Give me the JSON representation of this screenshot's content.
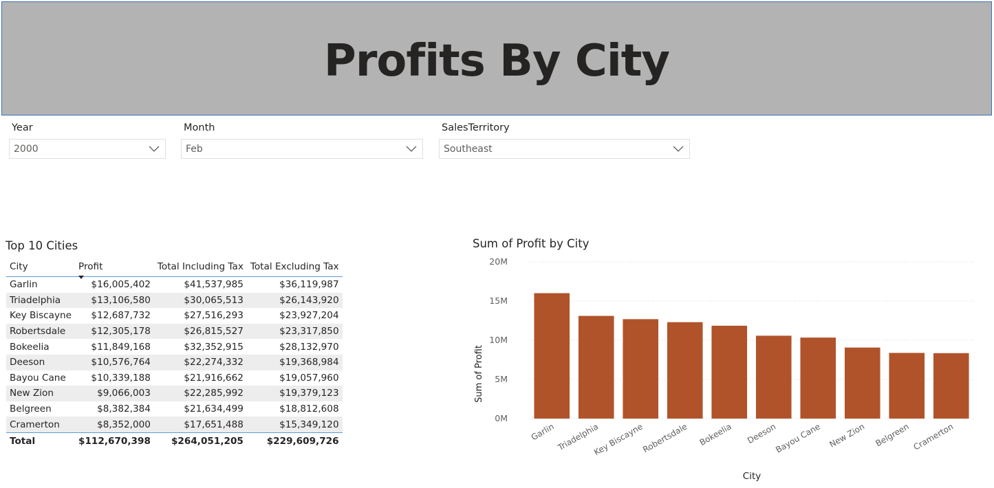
{
  "header": {
    "title": "Profits By City"
  },
  "slicers": {
    "year": {
      "label": "Year",
      "value": "2000"
    },
    "month": {
      "label": "Month",
      "value": "Feb"
    },
    "territory": {
      "label": "SalesTerritory",
      "value": "Southeast"
    }
  },
  "table": {
    "title": "Top 10 Cities",
    "columns": [
      "City",
      "Profit",
      "Total Including Tax",
      "Total Excluding Tax"
    ],
    "rows": [
      [
        "Garlin",
        "$16,005,402",
        "$41,537,985",
        "$36,119,987"
      ],
      [
        "Triadelphia",
        "$13,106,580",
        "$30,065,513",
        "$26,143,920"
      ],
      [
        "Key Biscayne",
        "$12,687,732",
        "$27,516,293",
        "$23,927,204"
      ],
      [
        "Robertsdale",
        "$12,305,178",
        "$26,815,527",
        "$23,317,850"
      ],
      [
        "Bokeelia",
        "$11,849,168",
        "$32,352,915",
        "$28,132,970"
      ],
      [
        "Deeson",
        "$10,576,764",
        "$22,274,332",
        "$19,368,984"
      ],
      [
        "Bayou Cane",
        "$10,339,188",
        "$21,916,662",
        "$19,057,960"
      ],
      [
        "New Zion",
        "$9,066,003",
        "$22,285,992",
        "$19,379,123"
      ],
      [
        "Belgreen",
        "$8,382,384",
        "$21,634,499",
        "$18,812,608"
      ],
      [
        "Cramerton",
        "$8,352,000",
        "$17,651,488",
        "$15,349,120"
      ]
    ],
    "total": [
      "Total",
      "$112,670,398",
      "$264,051,205",
      "$229,609,726"
    ]
  },
  "chart_data": {
    "type": "bar",
    "title": "Sum of Profit by City",
    "xlabel": "City",
    "ylabel": "Sum of Profit",
    "categories": [
      "Garlin",
      "Triadelphia",
      "Key Biscayne",
      "Robertsdale",
      "Bokeelia",
      "Deeson",
      "Bayou Cane",
      "New Zion",
      "Belgreen",
      "Cramerton"
    ],
    "values": [
      16005402,
      13106580,
      12687732,
      12305178,
      11849168,
      10576764,
      10339188,
      9066003,
      8382384,
      8352000
    ],
    "ylim": [
      0,
      20000000
    ],
    "yticks": [
      "0M",
      "5M",
      "10M",
      "15M",
      "20M"
    ],
    "grid": true,
    "bar_color": "#b0532a"
  }
}
